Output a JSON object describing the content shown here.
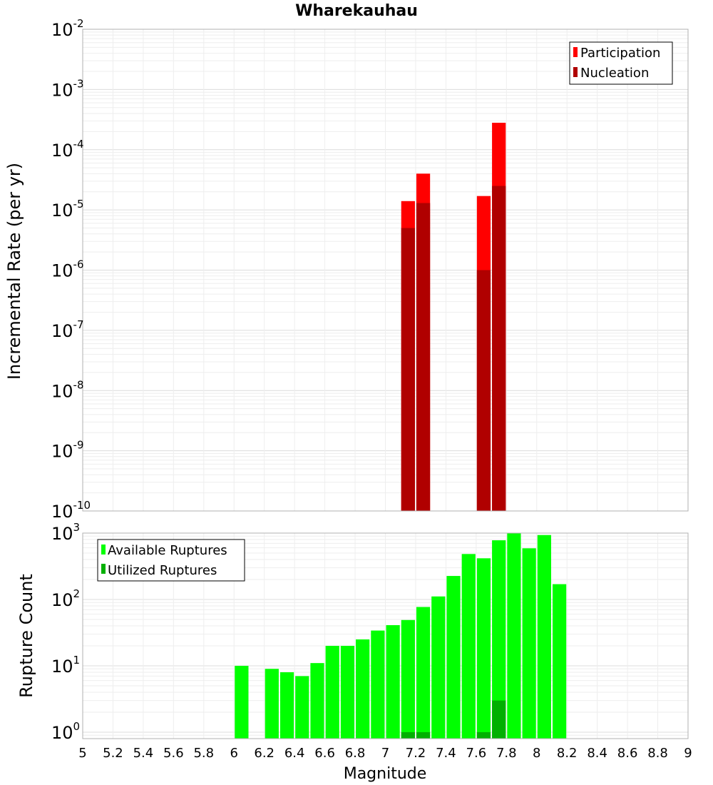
{
  "figure": {
    "title": "Wharekauhau",
    "xlabel": "Magnitude"
  },
  "chart_data": [
    {
      "type": "bar",
      "title": "Wharekauhau",
      "ylabel": "Incremental Rate (per yr)",
      "yscale": "log",
      "ylim": [
        1e-10,
        0.01
      ],
      "xlim": [
        5,
        9
      ],
      "grid": true,
      "legend_position": "top-right",
      "y_tick_labels": [
        {
          "base": "10",
          "exp": "-10"
        },
        {
          "base": "10",
          "exp": "-9"
        },
        {
          "base": "10",
          "exp": "-8"
        },
        {
          "base": "10",
          "exp": "-7"
        },
        {
          "base": "10",
          "exp": "-6"
        },
        {
          "base": "10",
          "exp": "-5"
        },
        {
          "base": "10",
          "exp": "-4"
        },
        {
          "base": "10",
          "exp": "-3"
        },
        {
          "base": "10",
          "exp": "-2"
        }
      ],
      "series": [
        {
          "name": "Participation",
          "color": "#ff0000",
          "x": [
            7.15,
            7.25,
            7.65,
            7.75
          ],
          "values": [
            1.4e-05,
            4e-05,
            1.7e-05,
            0.00028
          ]
        },
        {
          "name": "Nucleation",
          "color": "#b00000",
          "x": [
            7.15,
            7.25,
            7.65,
            7.75
          ],
          "values": [
            5e-06,
            1.3e-05,
            1e-06,
            2.5e-05
          ]
        }
      ]
    },
    {
      "type": "bar",
      "ylabel": "Rupture Count",
      "yscale": "log",
      "ylim": [
        0.8,
        1000
      ],
      "xlim": [
        5,
        9
      ],
      "grid": true,
      "legend_position": "top-left",
      "y_tick_labels": [
        {
          "base": "10",
          "exp": "0"
        },
        {
          "base": "10",
          "exp": "1"
        },
        {
          "base": "10",
          "exp": "2"
        },
        {
          "base": "10",
          "exp": "3"
        }
      ],
      "x_tick_labels": [
        "5",
        "5.2",
        "5.4",
        "5.6",
        "5.8",
        "6",
        "6.2",
        "6.4",
        "6.6",
        "6.8",
        "7",
        "7.2",
        "7.4",
        "7.6",
        "7.8",
        "8",
        "8.2",
        "8.4",
        "8.6",
        "8.8",
        "9"
      ],
      "series": [
        {
          "name": "Available Ruptures",
          "color": "#00ff00",
          "x": [
            6.05,
            6.25,
            6.35,
            6.45,
            6.55,
            6.65,
            6.75,
            6.85,
            6.95,
            7.05,
            7.15,
            7.25,
            7.35,
            7.45,
            7.55,
            7.65,
            7.75,
            7.85,
            7.95,
            8.05,
            8.15
          ],
          "values": [
            10,
            9,
            8,
            7,
            11,
            20,
            20,
            25,
            34,
            41,
            49,
            77,
            111,
            226,
            484,
            417,
            779,
            995,
            590,
            935,
            170
          ]
        },
        {
          "name": "Utilized Ruptures",
          "color": "#00b000",
          "x": [
            7.15,
            7.25,
            7.65,
            7.75
          ],
          "values": [
            1,
            1,
            1,
            3
          ]
        }
      ]
    }
  ]
}
